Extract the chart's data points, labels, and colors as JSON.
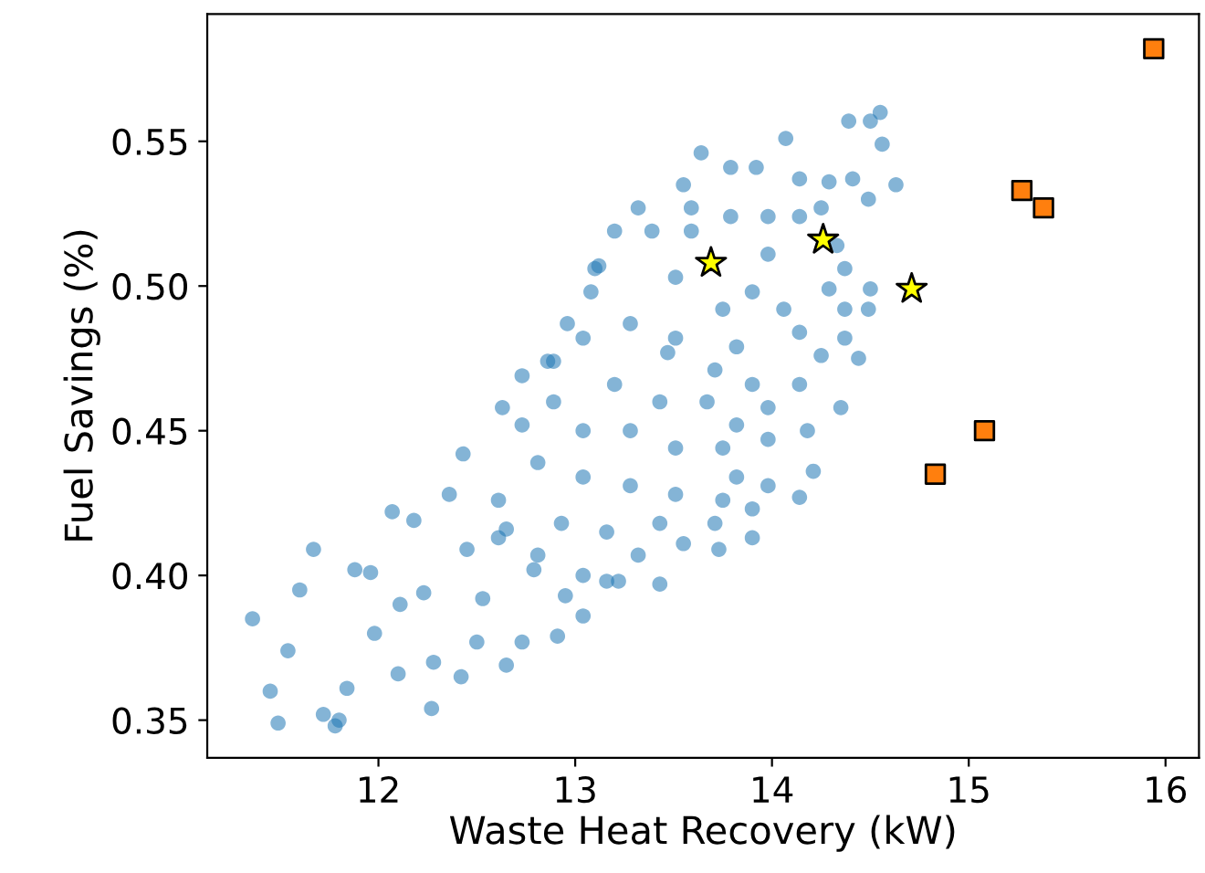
{
  "chart_data": {
    "type": "scatter",
    "xlabel": "Waste Heat Recovery (kW)",
    "ylabel": "Fuel Savings (%)",
    "xlim": [
      11.13,
      16.17
    ],
    "ylim": [
      0.337,
      0.594
    ],
    "xticks": [
      12,
      13,
      14,
      15,
      16
    ],
    "yticks": [
      0.35,
      {
        "value": 0.4,
        "label": "0.40"
      },
      0.45,
      {
        "value": 0.5,
        "label": "0.50"
      },
      0.55
    ],
    "grid": false,
    "series": [
      {
        "color": "#1f77b4",
        "marker": "circle",
        "x": [
          11.36,
          11.49,
          11.45,
          11.54,
          11.6,
          11.67,
          11.72,
          11.78,
          11.8,
          11.84,
          11.88,
          11.96,
          11.98,
          12.07,
          12.1,
          12.11,
          12.18,
          12.23,
          12.27,
          12.28,
          12.36,
          12.42,
          12.43,
          12.45,
          12.5,
          12.53,
          12.61,
          12.65,
          12.73,
          12.73,
          12.79,
          12.91,
          12.95,
          13.04,
          12.86,
          13.1,
          13.22,
          13.43,
          13.64,
          14.07,
          14.55,
          14.5,
          14.39,
          14.56,
          14.63,
          14.49,
          14.37,
          14.29,
          14.5,
          14.49,
          14.44,
          14.35,
          14.21,
          14.14,
          13.9,
          13.73,
          13.55,
          13.32,
          13.16,
          13.04,
          12.81,
          12.65,
          12.61,
          12.63,
          12.73,
          12.89,
          12.96,
          13.12,
          13.32,
          13.55,
          13.79,
          13.92,
          14.14,
          14.29,
          14.41,
          13.39,
          13.59,
          13.79,
          13.98,
          14.14,
          14.25,
          13.51,
          13.75,
          13.98,
          13.28,
          13.04,
          13.51,
          13.82,
          14.14,
          14.25,
          13.2,
          13.43,
          13.67,
          13.9,
          14.14,
          12.89,
          13.04,
          13.28,
          13.51,
          13.75,
          13.98,
          14.18,
          12.81,
          13.04,
          13.28,
          13.51,
          13.75,
          13.98,
          12.93,
          13.16,
          13.43,
          13.71,
          13.9,
          13.08,
          13.2,
          13.59,
          14.33,
          14.37,
          14.37,
          13.9,
          14.06,
          13.47,
          13.71,
          13.82,
          13.98,
          13.82
        ],
        "values": [
          0.385,
          0.349,
          0.36,
          0.374,
          0.395,
          0.409,
          0.352,
          0.348,
          0.35,
          0.361,
          0.402,
          0.401,
          0.38,
          0.422,
          0.366,
          0.39,
          0.419,
          0.394,
          0.354,
          0.37,
          0.428,
          0.365,
          0.442,
          0.409,
          0.377,
          0.392,
          0.413,
          0.369,
          0.377,
          0.469,
          0.402,
          0.379,
          0.393,
          0.386,
          0.474,
          0.506,
          0.398,
          0.397,
          0.546,
          0.551,
          0.56,
          0.557,
          0.557,
          0.549,
          0.535,
          0.53,
          0.506,
          0.499,
          0.499,
          0.492,
          0.475,
          0.458,
          0.436,
          0.427,
          0.413,
          0.409,
          0.411,
          0.407,
          0.398,
          0.4,
          0.407,
          0.416,
          0.426,
          0.458,
          0.452,
          0.474,
          0.487,
          0.507,
          0.527,
          0.535,
          0.541,
          0.541,
          0.537,
          0.536,
          0.537,
          0.519,
          0.519,
          0.524,
          0.524,
          0.524,
          0.527,
          0.503,
          0.492,
          0.511,
          0.487,
          0.482,
          0.482,
          0.479,
          0.484,
          0.476,
          0.466,
          0.46,
          0.46,
          0.466,
          0.466,
          0.46,
          0.45,
          0.45,
          0.444,
          0.444,
          0.447,
          0.45,
          0.439,
          0.434,
          0.431,
          0.428,
          0.426,
          0.431,
          0.418,
          0.415,
          0.418,
          0.418,
          0.423,
          0.498,
          0.519,
          0.527,
          0.514,
          0.492,
          0.482,
          0.498,
          0.492,
          0.477,
          0.471,
          0.452,
          0.458,
          0.434
        ]
      },
      {
        "color": "#ff7f0e",
        "marker": "square",
        "x": [
          15.94,
          15.27,
          15.38,
          15.08,
          14.83
        ],
        "values": [
          0.582,
          0.533,
          0.527,
          0.45,
          0.435
        ]
      },
      {
        "color": "#ffff00",
        "marker": "star",
        "x": [
          13.69,
          14.26,
          14.71
        ],
        "values": [
          0.508,
          0.516,
          0.499
        ]
      }
    ]
  }
}
